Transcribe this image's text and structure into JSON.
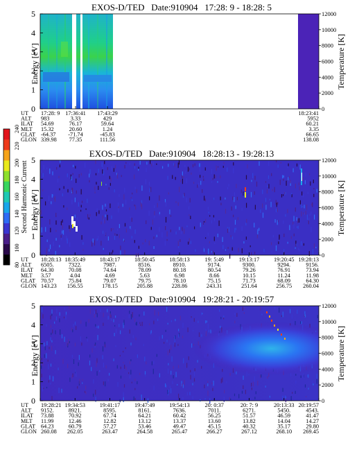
{
  "colorbar": {
    "label": "Second Harmonic Current",
    "ticks": [
      "80",
      "100",
      "120",
      "140",
      "160",
      "180",
      "200",
      "220",
      "240"
    ],
    "colors": [
      "#000000",
      "#2a0a4a",
      "#4a1f8a",
      "#3a36d0",
      "#2f6cf5",
      "#19a6ea",
      "#1fc9b4",
      "#39d65e",
      "#8ee02c",
      "#e9ea1c",
      "#f6a41a",
      "#ef3b1c",
      "#e2141c"
    ]
  },
  "row_labels": [
    "UT",
    "ALT",
    "ILAT",
    "MLT",
    "GLAT",
    "GLON"
  ],
  "chart_data": [
    {
      "type": "heatmap",
      "title": "EXOS-D/TED   Date:910904   17:28: 9 - 18:28: 5",
      "ylabel": "Energy [eV]",
      "ylabel_right": "Temperature [K]",
      "ylim": [
        0,
        5
      ],
      "yticks": [
        "0",
        "1",
        "2",
        "3",
        "4",
        "5"
      ],
      "ylim_right": [
        0,
        12000
      ],
      "yticks_right": [
        "0",
        "2000",
        "4000",
        "6000",
        "8000",
        "10000",
        "12000"
      ],
      "data_segments": [
        {
          "start": "17:28:09",
          "end": "17:35:30",
          "level": "green-cyan"
        },
        {
          "start": "17:36:20",
          "end": "17:42:40",
          "level": "green-cyan"
        },
        {
          "start": "18:23:20",
          "end": "18:28:05",
          "level": "indigo"
        }
      ],
      "axis_table": {
        "UT": [
          "17:28: 9",
          "17:36:41",
          "17:43:29",
          "18:23:41"
        ],
        "ALT": [
          "983",
          "3.33",
          "429",
          "5952"
        ],
        "ILAT": [
          "54.69",
          "76.17",
          "59.64",
          "60.21"
        ],
        "MLT": [
          "15.32",
          "20.60",
          "1.24",
          "3.35"
        ],
        "GLAT": [
          "-64.37",
          "-71.74",
          "-45.83",
          "66.65"
        ],
        "GLON": [
          "339.98",
          "77.35",
          "111.56",
          "138.08"
        ]
      }
    },
    {
      "type": "heatmap",
      "title": "EXOS-D/TED   Date:910904   18:28:13 - 19:28:13",
      "ylabel": "Energy [eV]",
      "ylabel_right": "Temperature [K]",
      "ylim": [
        0,
        5
      ],
      "yticks": [
        "0",
        "1",
        "2",
        "3",
        "4",
        "5"
      ],
      "ylim_right": [
        0,
        12000
      ],
      "yticks_right": [
        "0",
        "2000",
        "4000",
        "6000",
        "8000",
        "10000",
        "12000"
      ],
      "axis_table": {
        "UT": [
          "18:28:13",
          "18:35:49",
          "18:43:17",
          "18:50:45",
          "18:58:13",
          "19: 5:49",
          "19:13:17",
          "19:20:45",
          "19:28:13"
        ],
        "ALT": [
          "6505.",
          "7322.",
          "7987.",
          "8516.",
          "8910.",
          "9174.",
          "9300.",
          "9294.",
          "9156."
        ],
        "ILAT": [
          "64.30",
          "70.08",
          "74.64",
          "78.09",
          "80.18",
          "80.54",
          "79.26",
          "76.91",
          "73.94"
        ],
        "MLT": [
          "3.57",
          "4.04",
          "4.69",
          "5.63",
          "6.98",
          "8.66",
          "10.15",
          "11.24",
          "11.98"
        ],
        "GLAT": [
          "70.57",
          "75.84",
          "79.07",
          "79.75",
          "78.10",
          "75.15",
          "71.73",
          "68.09",
          "64.30"
        ],
        "GLON": [
          "143.23",
          "156.55",
          "178.15",
          "205.88",
          "228.86",
          "243.31",
          "251.64",
          "256.75",
          "260.04"
        ]
      }
    },
    {
      "type": "heatmap",
      "title": "EXOS-D/TED   Date:910904   19:28:21 - 20:19:57",
      "ylabel": "Energy [eV]",
      "ylabel_right": "Temperature [K]",
      "ylim": [
        0,
        5
      ],
      "yticks": [
        "0",
        "1",
        "2",
        "3",
        "4",
        "5"
      ],
      "ylim_right": [
        0,
        12000
      ],
      "yticks_right": [
        "0",
        "2000",
        "4000",
        "6000",
        "8000",
        "10000",
        "12000"
      ],
      "axis_table": {
        "UT": [
          "19:28:21",
          "19:34:53",
          "19:41:17",
          "19:47:49",
          "19:54:13",
          "20: 0:37",
          "20: 7: 9",
          "20:13:33",
          "20:19:57"
        ],
        "ALT": [
          "9152.",
          "8921.",
          "8595.",
          "8161.",
          "7636.",
          "7011.",
          "6271.",
          "5450.",
          "4543."
        ],
        "ILAT": [
          "73.88",
          "70.92",
          "67.74",
          "64.21",
          "60.42",
          "56.25",
          "51.57",
          "46.59",
          "41.47"
        ],
        "MLT": [
          "11.99",
          "12.46",
          "12.82",
          "13.12",
          "13.37",
          "13.60",
          "13.82",
          "14.04",
          "14.27"
        ],
        "GLAT": [
          "64.23",
          "60.79",
          "57.27",
          "53.46",
          "49.47",
          "45.15",
          "40.32",
          "35.17",
          "29.80"
        ],
        "GLON": [
          "260.08",
          "262.05",
          "263.47",
          "264.58",
          "265.47",
          "266.27",
          "267.12",
          "268.10",
          "269.45"
        ]
      }
    }
  ]
}
